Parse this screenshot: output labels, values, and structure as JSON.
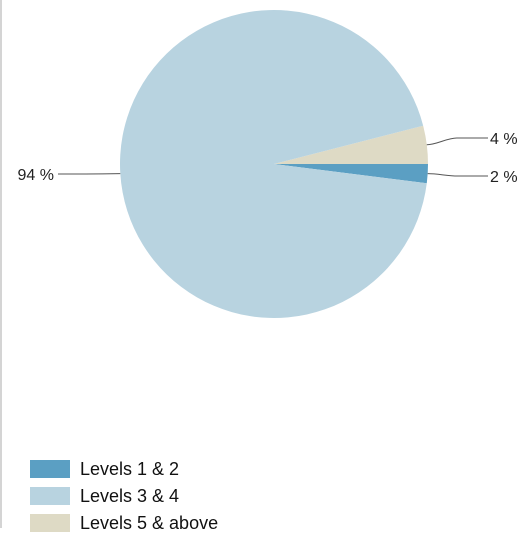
{
  "chart_data": {
    "type": "pie",
    "title": "",
    "slices": [
      {
        "name": "Levels 1 & 2",
        "value": 2,
        "label": "2 %",
        "color": "#5b9fc3"
      },
      {
        "name": "Levels 3 & 4",
        "value": 94,
        "label": "94 %",
        "color": "#b8d3e0"
      },
      {
        "name": "Levels 5 & above",
        "value": 4,
        "label": "4 %",
        "color": "#dedac5"
      }
    ],
    "legend_placement": "bottom-left"
  }
}
